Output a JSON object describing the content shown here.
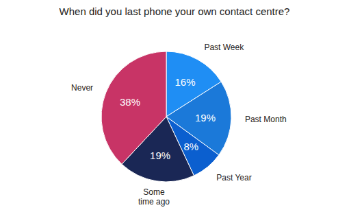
{
  "chart_data": {
    "type": "pie",
    "title": "When did you last phone your own contact centre?",
    "categories": [
      "Past Week",
      "Past Month",
      "Past Year",
      "Some time ago",
      "Never"
    ],
    "values": [
      16,
      19,
      8,
      19,
      38
    ],
    "value_labels": [
      "16%",
      "19%",
      "8%",
      "19%",
      "38%"
    ],
    "colors": [
      "#1f8ef4",
      "#1b79d9",
      "#0b5fcf",
      "#1a2755",
      "#c83466"
    ],
    "data_labels": true
  }
}
